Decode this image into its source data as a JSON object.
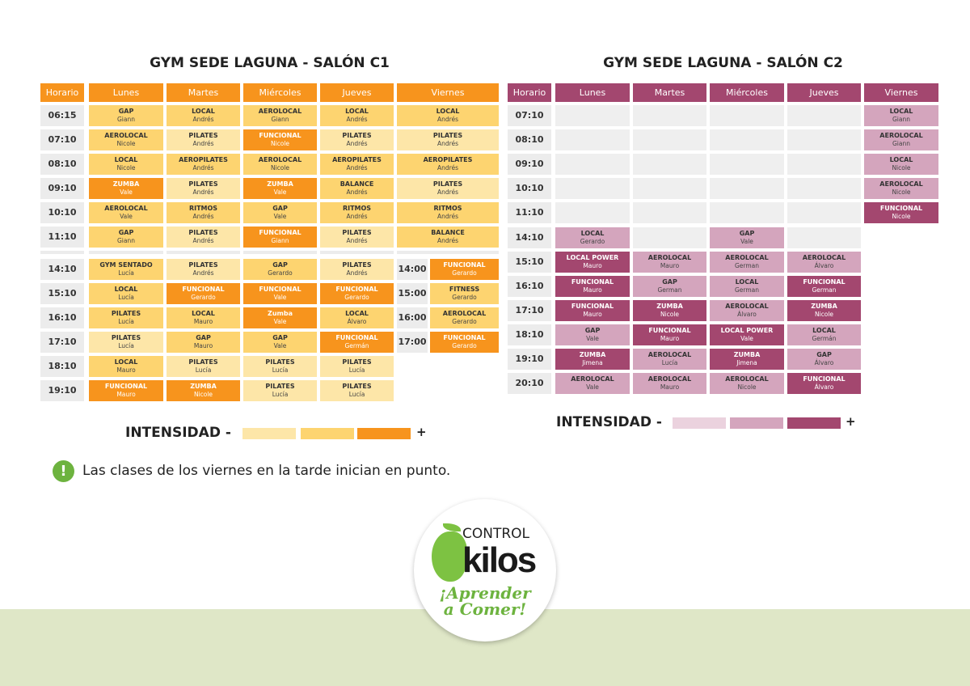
{
  "colors": {
    "c1": {
      "header": "#f7941d",
      "low": "#fde6a8",
      "mid": "#fdd470",
      "high": "#f7941d"
    },
    "c2": {
      "header": "#a3476f",
      "low": "#ebd2de",
      "mid": "#d4a5bd",
      "high": "#a3476f"
    },
    "empty": "#efefef",
    "band": "#dfe7c7"
  },
  "c1": {
    "title": "GYM SEDE LAGUNA - SALÓN C1",
    "headers": [
      "Horario",
      "Lunes",
      "Martes",
      "Miércoles",
      "Jueves",
      "Viernes"
    ],
    "morning": [
      {
        "t": "06:15",
        "cells": [
          [
            "GAP",
            "Giann",
            "mid"
          ],
          [
            "LOCAL",
            "Andrés",
            "mid"
          ],
          [
            "AEROLOCAL",
            "Giann",
            "mid"
          ],
          [
            "LOCAL",
            "Andrés",
            "mid"
          ],
          [
            "LOCAL",
            "Andrés",
            "mid"
          ]
        ]
      },
      {
        "t": "07:10",
        "cells": [
          [
            "AEROLOCAL",
            "Nicole",
            "mid"
          ],
          [
            "PILATES",
            "Andrés",
            "low"
          ],
          [
            "FUNCIONAL",
            "Nicole",
            "high"
          ],
          [
            "PILATES",
            "Andrés",
            "low"
          ],
          [
            "PILATES",
            "Andrés",
            "low"
          ]
        ]
      },
      {
        "t": "08:10",
        "cells": [
          [
            "LOCAL",
            "Nicole",
            "mid"
          ],
          [
            "AEROPILATES",
            "Andrés",
            "mid"
          ],
          [
            "AEROLOCAL",
            "Nicole",
            "mid"
          ],
          [
            "AEROPILATES",
            "Andrés",
            "mid"
          ],
          [
            "AEROPILATES",
            "Andrés",
            "mid"
          ]
        ]
      },
      {
        "t": "09:10",
        "cells": [
          [
            "ZUMBA",
            "Vale",
            "high"
          ],
          [
            "PILATES",
            "Andrés",
            "low"
          ],
          [
            "ZUMBA",
            "Vale",
            "high"
          ],
          [
            "BALANCE",
            "Andrés",
            "mid"
          ],
          [
            "PILATES",
            "Andrés",
            "low"
          ]
        ]
      },
      {
        "t": "10:10",
        "cells": [
          [
            "AEROLOCAL",
            "Vale",
            "mid"
          ],
          [
            "RITMOS",
            "Andrés",
            "mid"
          ],
          [
            "GAP",
            "Vale",
            "mid"
          ],
          [
            "RITMOS",
            "Andrés",
            "mid"
          ],
          [
            "RITMOS",
            "Andrés",
            "mid"
          ]
        ]
      },
      {
        "t": "11:10",
        "cells": [
          [
            "GAP",
            "Giann",
            "mid"
          ],
          [
            "PILATES",
            "Andrés",
            "low"
          ],
          [
            "FUNCIONAL",
            "Giann",
            "high"
          ],
          [
            "PILATES",
            "Andrés",
            "low"
          ],
          [
            "BALANCE",
            "Andrés",
            "mid"
          ]
        ]
      }
    ],
    "afternoon": [
      {
        "t": "14:10",
        "cells": [
          [
            "GYM SENTADO",
            "Lucía",
            "mid"
          ],
          [
            "PILATES",
            "Andrés",
            "low"
          ],
          [
            "GAP",
            "Gerardo",
            "mid"
          ],
          [
            "PILATES",
            "Andrés",
            "low"
          ]
        ],
        "ft": "14:00",
        "fri": [
          "FUNCIONAL",
          "Gerardo",
          "high"
        ]
      },
      {
        "t": "15:10",
        "cells": [
          [
            "LOCAL",
            "Lucía",
            "mid"
          ],
          [
            "FUNCIONAL",
            "Gerardo",
            "high"
          ],
          [
            "FUNCIONAL",
            "Vale",
            "high"
          ],
          [
            "FUNCIONAL",
            "Gerardo",
            "high"
          ]
        ],
        "ft": "15:00",
        "fri": [
          "FITNESS",
          "Gerardo",
          "mid"
        ]
      },
      {
        "t": "16:10",
        "cells": [
          [
            "PILATES",
            "Lucía",
            "mid"
          ],
          [
            "LOCAL",
            "Mauro",
            "mid"
          ],
          [
            "Zumba",
            "Vale",
            "high"
          ],
          [
            "LOCAL",
            "Álvaro",
            "mid"
          ]
        ],
        "ft": "16:00",
        "fri": [
          "AEROLOCAL",
          "Gerardo",
          "mid"
        ]
      },
      {
        "t": "17:10",
        "cells": [
          [
            "PILATES",
            "Lucía",
            "low"
          ],
          [
            "GAP",
            "Mauro",
            "mid"
          ],
          [
            "GAP",
            "Vale",
            "mid"
          ],
          [
            "FUNCIONAL",
            "Germán",
            "high"
          ]
        ],
        "ft": "17:00",
        "fri": [
          "FUNCIONAL",
          "Gerardo",
          "high"
        ]
      },
      {
        "t": "18:10",
        "cells": [
          [
            "LOCAL",
            "Mauro",
            "mid"
          ],
          [
            "PILATES",
            "Lucía",
            "low"
          ],
          [
            "PILATES",
            "Lucía",
            "low"
          ],
          [
            "PILATES",
            "Lucía",
            "low"
          ]
        ]
      },
      {
        "t": "19:10",
        "cells": [
          [
            "FUNCIONAL",
            "Mauro",
            "high"
          ],
          [
            "ZUMBA",
            "Nicole",
            "high"
          ],
          [
            "PILATES",
            "Lucía",
            "low"
          ],
          [
            "PILATES",
            "Lucía",
            "low"
          ]
        ]
      }
    ]
  },
  "c2": {
    "title": "GYM SEDE LAGUNA - SALÓN C2",
    "headers": [
      "Horario",
      "Lunes",
      "Martes",
      "Miércoles",
      "Jueves",
      "Viernes"
    ],
    "rows": [
      {
        "t": "07:10",
        "cells": [
          null,
          null,
          null,
          null,
          [
            "LOCAL",
            "Giann",
            "mid"
          ]
        ]
      },
      {
        "t": "08:10",
        "cells": [
          null,
          null,
          null,
          null,
          [
            "AEROLOCAL",
            "Giann",
            "mid"
          ]
        ]
      },
      {
        "t": "09:10",
        "cells": [
          null,
          null,
          null,
          null,
          [
            "LOCAL",
            "Nicole",
            "mid"
          ]
        ]
      },
      {
        "t": "10:10",
        "cells": [
          null,
          null,
          null,
          null,
          [
            "AEROLOCAL",
            "Nicole",
            "mid"
          ]
        ]
      },
      {
        "t": "11:10",
        "cells": [
          null,
          null,
          null,
          null,
          [
            "FUNCIONAL",
            "Nicole",
            "high"
          ]
        ]
      },
      {
        "t": "14:10",
        "cells": [
          [
            "LOCAL",
            "Gerardo",
            "mid"
          ],
          null,
          [
            "GAP",
            "Vale",
            "mid"
          ],
          null
        ]
      },
      {
        "t": "15:10",
        "cells": [
          [
            "LOCAL POWER",
            "Mauro",
            "high"
          ],
          [
            "AEROLOCAL",
            "Mauro",
            "mid"
          ],
          [
            "AEROLOCAL",
            "German",
            "mid"
          ],
          [
            "AEROLOCAL",
            "Álvaro",
            "mid"
          ]
        ]
      },
      {
        "t": "16:10",
        "cells": [
          [
            "FUNCIONAL",
            "Mauro",
            "high"
          ],
          [
            "GAP",
            "German",
            "mid"
          ],
          [
            "LOCAL",
            "German",
            "mid"
          ],
          [
            "FUNCIONAL",
            "German",
            "high"
          ]
        ]
      },
      {
        "t": "17:10",
        "cells": [
          [
            "FUNCIONAL",
            "Mauro",
            "high"
          ],
          [
            "ZUMBA",
            "Nicole",
            "high"
          ],
          [
            "AEROLOCAL",
            "Álvaro",
            "mid"
          ],
          [
            "ZUMBA",
            "Nicole",
            "high"
          ]
        ]
      },
      {
        "t": "18:10",
        "cells": [
          [
            "GAP",
            "Vale",
            "mid"
          ],
          [
            "FUNCIONAL",
            "Mauro",
            "high"
          ],
          [
            "LOCAL POWER",
            "Vale",
            "high"
          ],
          [
            "LOCAL",
            "Germán",
            "mid"
          ]
        ]
      },
      {
        "t": "19:10",
        "cells": [
          [
            "ZUMBA",
            "Jimena",
            "high"
          ],
          [
            "AEROLOCAL",
            "Lucía",
            "mid"
          ],
          [
            "ZUMBA",
            "Jimena",
            "high"
          ],
          [
            "GAP",
            "Álvaro",
            "mid"
          ]
        ]
      },
      {
        "t": "20:10",
        "cells": [
          [
            "AEROLOCAL",
            "Vale",
            "mid"
          ],
          [
            "AEROLOCAL",
            "Mauro",
            "mid"
          ],
          [
            "AEROLOCAL",
            "Nicole",
            "mid"
          ],
          [
            "FUNCIONAL",
            "Álvaro",
            "high"
          ]
        ]
      }
    ]
  },
  "legend": {
    "label": "INTENSIDAD -",
    "plus": "+"
  },
  "note": {
    "icon": "exclamation-circle-icon",
    "text": "Las clases de los viernes en la tarde inician en punto."
  },
  "logo": {
    "line1": "CONTROL",
    "line2": "kilos",
    "tagline": "¡Aprender a Comer!"
  }
}
